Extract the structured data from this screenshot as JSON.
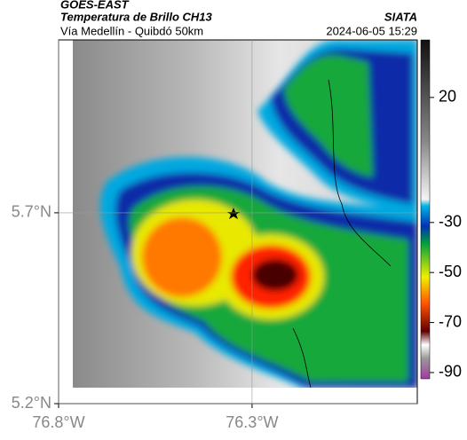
{
  "header": {
    "title": "GOES-EAST",
    "subtitle": "Temperatura de Brillo CH13",
    "route": "Vía Medellín - Quibdó 50km",
    "source": "SIATA",
    "datetime": "2024-06-05 15:29"
  },
  "map": {
    "xlim": [
      -76.8,
      -75.873
    ],
    "ylim": [
      5.2,
      6.153
    ],
    "xticks": [
      {
        "value": -76.8,
        "label": "76.8°W"
      },
      {
        "value": -76.3,
        "label": "76.3°W"
      }
    ],
    "yticks": [
      {
        "value": 5.2,
        "label": "5.2°N"
      },
      {
        "value": 5.7,
        "label": "5.7°N"
      }
    ]
  },
  "colorbar": {
    "lim": [
      43,
      -92.5
    ],
    "ticks": [
      20,
      -30,
      -50,
      -70,
      -90
    ]
  }
}
